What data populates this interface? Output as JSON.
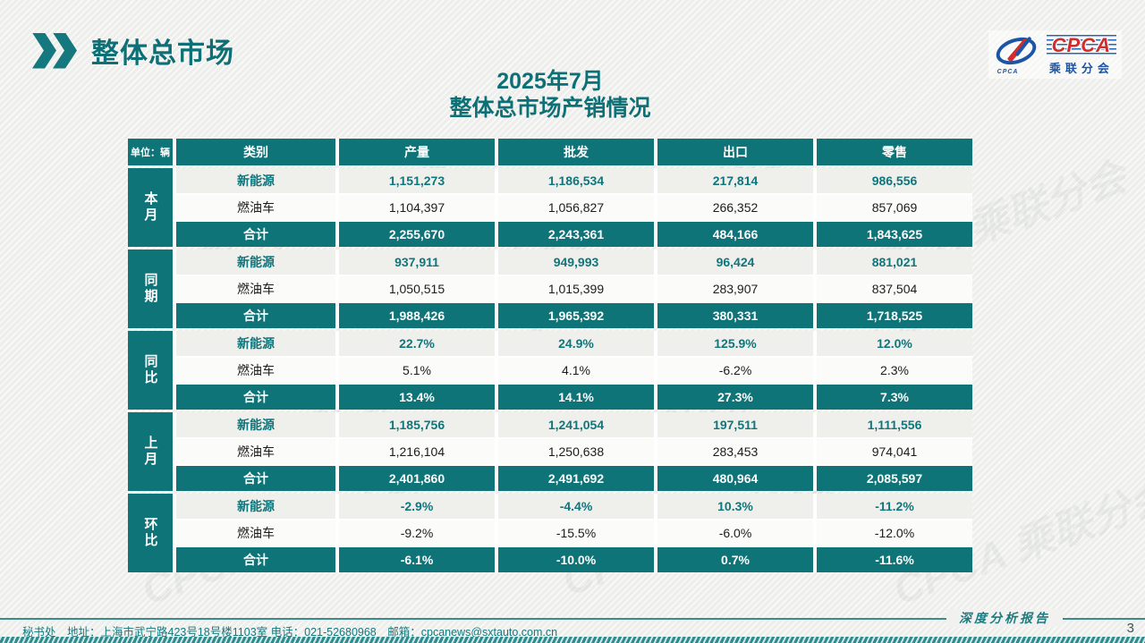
{
  "slide": {
    "header": {
      "title": "整体总市场"
    },
    "logo": {
      "main_text": "CPCA",
      "sub_text": "乘联分会",
      "icon_caption": "CPCA"
    },
    "title_line1": "2025年7月",
    "title_line2": "整体总市场产销情况",
    "watermark_text": "CPCA 乘联分会",
    "footer": {
      "info": "秘书处　地址：上海市武宁路423号18号楼1103室 电话：021-52680968　邮箱：cpcanews@sxtauto.com.cn",
      "report_label": "深度分析报告",
      "page_number": "3"
    }
  },
  "colors": {
    "accent_teal": "#0e7478",
    "title_teal": "#0d7076",
    "logo_blue": "#1d55a5",
    "logo_red": "#d42b2b"
  },
  "chart_data": {
    "type": "table",
    "title": "2025年7月整体总市场产销情况",
    "unit_label": "单位：辆",
    "columns": [
      "类别",
      "产量",
      "批发",
      "出口",
      "零售"
    ],
    "sections": [
      {
        "group": "本月",
        "key": "this-month",
        "rows": [
          {
            "category": "新能源",
            "style": "nev",
            "values": [
              "1,151,273",
              "1,186,534",
              "217,814",
              "986,556"
            ]
          },
          {
            "category": "燃油车",
            "style": "fuel",
            "values": [
              "1,104,397",
              "1,056,827",
              "266,352",
              "857,069"
            ]
          },
          {
            "category": "合计",
            "style": "total",
            "values": [
              "2,255,670",
              "2,243,361",
              "484,166",
              "1,843,625"
            ]
          }
        ]
      },
      {
        "group": "同期",
        "key": "same-period",
        "rows": [
          {
            "category": "新能源",
            "style": "nev",
            "values": [
              "937,911",
              "949,993",
              "96,424",
              "881,021"
            ]
          },
          {
            "category": "燃油车",
            "style": "fuel",
            "values": [
              "1,050,515",
              "1,015,399",
              "283,907",
              "837,504"
            ]
          },
          {
            "category": "合计",
            "style": "total",
            "values": [
              "1,988,426",
              "1,965,392",
              "380,331",
              "1,718,525"
            ]
          }
        ]
      },
      {
        "group": "同比",
        "key": "yoy",
        "rows": [
          {
            "category": "新能源",
            "style": "nev",
            "values": [
              "22.7%",
              "24.9%",
              "125.9%",
              "12.0%"
            ]
          },
          {
            "category": "燃油车",
            "style": "fuel",
            "values": [
              "5.1%",
              "4.1%",
              "-6.2%",
              "2.3%"
            ]
          },
          {
            "category": "合计",
            "style": "total",
            "values": [
              "13.4%",
              "14.1%",
              "27.3%",
              "7.3%"
            ]
          }
        ]
      },
      {
        "group": "上月",
        "key": "last-month",
        "rows": [
          {
            "category": "新能源",
            "style": "nev",
            "values": [
              "1,185,756",
              "1,241,054",
              "197,511",
              "1,111,556"
            ]
          },
          {
            "category": "燃油车",
            "style": "fuel",
            "values": [
              "1,216,104",
              "1,250,638",
              "283,453",
              "974,041"
            ]
          },
          {
            "category": "合计",
            "style": "total",
            "values": [
              "2,401,860",
              "2,491,692",
              "480,964",
              "2,085,597"
            ]
          }
        ]
      },
      {
        "group": "环比",
        "key": "mom",
        "rows": [
          {
            "category": "新能源",
            "style": "nev",
            "values": [
              "-2.9%",
              "-4.4%",
              "10.3%",
              "-11.2%"
            ]
          },
          {
            "category": "燃油车",
            "style": "fuel",
            "values": [
              "-9.2%",
              "-15.5%",
              "-6.0%",
              "-12.0%"
            ]
          },
          {
            "category": "合计",
            "style": "total",
            "values": [
              "-6.1%",
              "-10.0%",
              "0.7%",
              "-11.6%"
            ]
          }
        ]
      }
    ]
  }
}
